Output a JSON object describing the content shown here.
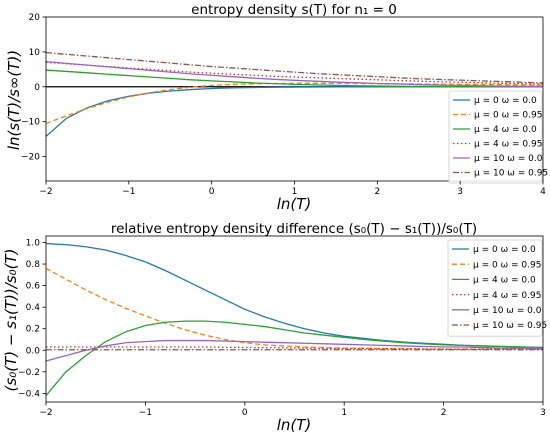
{
  "chart_data": [
    {
      "type": "line",
      "title": "entropy density s(T) for n₁ = 0",
      "xlabel": "ln(T)",
      "ylabel": "ln(s(T)/s∞(T))",
      "xlim": [
        -2,
        4
      ],
      "ylim": [
        -27,
        20
      ],
      "xticks": [
        -2,
        -1,
        0,
        1,
        2,
        3,
        4
      ],
      "yticks": [
        -20,
        -10,
        0,
        10,
        20
      ],
      "zero_line": true,
      "grid": false,
      "legend_placement": "right",
      "x": [
        -2.0,
        -1.75,
        -1.5,
        -1.25,
        -1.0,
        -0.75,
        -0.5,
        -0.25,
        0.0,
        0.25,
        0.5,
        0.75,
        1.0,
        1.25,
        1.5,
        1.75,
        2.0,
        2.25,
        2.5,
        2.75,
        3.0,
        3.25,
        3.5,
        3.75,
        4.0
      ],
      "series": [
        {
          "name": "μ = 0 ω = 0.0",
          "color": "#1f77b4",
          "dash": "solid",
          "values": [
            -14.2,
            -9.0,
            -6.0,
            -4.0,
            -2.7,
            -1.8,
            -1.2,
            -0.8,
            -0.5,
            -0.3,
            -0.2,
            -0.12,
            -0.08,
            -0.05,
            -0.03,
            -0.02,
            -0.01,
            -0.01,
            0,
            0,
            0,
            0,
            0,
            0,
            0
          ]
        },
        {
          "name": "μ = 0 ω = 0.95",
          "color": "#ff7f0e",
          "dash": "dashed",
          "values": [
            -10.5,
            -8.3,
            -6.2,
            -4.4,
            -2.9,
            -1.7,
            -0.8,
            -0.1,
            0.4,
            0.7,
            0.85,
            0.95,
            1.0,
            1.0,
            0.98,
            0.95,
            0.9,
            0.85,
            0.8,
            0.75,
            0.7,
            0.65,
            0.6,
            0.55,
            0.5
          ]
        },
        {
          "name": "μ = 4 ω = 0.0",
          "color": "#2ca02c",
          "dash": "solid",
          "values": [
            4.8,
            4.4,
            4.0,
            3.6,
            3.2,
            2.8,
            2.4,
            2.0,
            1.7,
            1.4,
            1.1,
            0.9,
            0.7,
            0.55,
            0.4,
            0.3,
            0.22,
            0.15,
            0.1,
            0.07,
            0.05,
            0.03,
            0.02,
            0.01,
            0.0
          ]
        },
        {
          "name": "μ = 4 ω = 0.95",
          "color": "#d62728",
          "dash": "dotted",
          "values": [
            7.0,
            6.6,
            6.2,
            5.8,
            5.4,
            5.0,
            4.6,
            4.2,
            3.9,
            3.6,
            3.3,
            3.0,
            2.8,
            2.6,
            2.4,
            2.2,
            2.0,
            1.8,
            1.6,
            1.45,
            1.3,
            1.15,
            1.0,
            0.9,
            0.8
          ]
        },
        {
          "name": "μ = 10 ω = 0.0",
          "color": "#9467bd",
          "dash": "solid",
          "values": [
            7.2,
            6.7,
            6.2,
            5.7,
            5.2,
            4.7,
            4.2,
            3.7,
            3.3,
            2.9,
            2.5,
            2.15,
            1.85,
            1.6,
            1.35,
            1.15,
            0.95,
            0.8,
            0.65,
            0.5,
            0.4,
            0.3,
            0.2,
            0.15,
            0.1
          ]
        },
        {
          "name": "μ = 10 ω = 0.95",
          "color": "#8c564b",
          "dash": "dashdot",
          "values": [
            9.8,
            9.3,
            8.8,
            8.3,
            7.8,
            7.3,
            6.8,
            6.3,
            5.8,
            5.4,
            5.0,
            4.6,
            4.2,
            3.8,
            3.5,
            3.2,
            2.9,
            2.6,
            2.3,
            2.1,
            1.9,
            1.7,
            1.5,
            1.3,
            1.1
          ]
        }
      ]
    },
    {
      "type": "line",
      "title": "relative entropy density difference (s₀(T) − s₁(T))/s₀(T)",
      "xlabel": "ln(T)",
      "ylabel": "(s₀(T) − s₁(T))/s₀(T)",
      "xlim": [
        -2,
        3
      ],
      "ylim": [
        -0.48,
        1.06
      ],
      "xticks": [
        -2,
        -1,
        0,
        1,
        2,
        3
      ],
      "yticks": [
        -0.4,
        -0.2,
        0.0,
        0.2,
        0.4,
        0.6,
        0.8,
        1.0
      ],
      "grid": false,
      "legend_placement": "upper right",
      "x": [
        -2.0,
        -1.8,
        -1.6,
        -1.4,
        -1.2,
        -1.0,
        -0.8,
        -0.6,
        -0.4,
        -0.2,
        0.0,
        0.2,
        0.4,
        0.6,
        0.8,
        1.0,
        1.2,
        1.4,
        1.6,
        1.8,
        2.0,
        2.2,
        2.4,
        2.6,
        2.8,
        3.0
      ],
      "series": [
        {
          "name": "μ = 0 ω = 0.0",
          "color": "#1f77b4",
          "dash": "solid",
          "values": [
            0.99,
            0.98,
            0.96,
            0.93,
            0.88,
            0.82,
            0.74,
            0.65,
            0.56,
            0.47,
            0.38,
            0.31,
            0.25,
            0.2,
            0.16,
            0.13,
            0.11,
            0.09,
            0.075,
            0.065,
            0.055,
            0.045,
            0.04,
            0.035,
            0.03,
            0.025
          ]
        },
        {
          "name": "μ = 0 ω = 0.95",
          "color": "#ff7f0e",
          "dash": "dashed",
          "values": [
            0.76,
            0.66,
            0.56,
            0.47,
            0.39,
            0.32,
            0.25,
            0.19,
            0.14,
            0.1,
            0.07,
            0.05,
            0.04,
            0.03,
            0.025,
            0.02,
            0.02,
            0.015,
            0.015,
            0.01,
            0.01,
            0.01,
            0.01,
            0.01,
            0.01,
            0.01
          ]
        },
        {
          "name": "μ = 4 ω = 0.0",
          "color": "#2ca02c",
          "dash": "solid",
          "values": [
            -0.42,
            -0.2,
            -0.05,
            0.08,
            0.17,
            0.23,
            0.26,
            0.27,
            0.27,
            0.26,
            0.24,
            0.22,
            0.19,
            0.16,
            0.14,
            0.12,
            0.1,
            0.085,
            0.07,
            0.06,
            0.05,
            0.045,
            0.04,
            0.035,
            0.03,
            0.025
          ]
        },
        {
          "name": "μ = 4 ω = 0.95",
          "color": "#d62728",
          "dash": "dotted",
          "values": [
            0.03,
            0.03,
            0.03,
            0.03,
            0.03,
            0.03,
            0.03,
            0.03,
            0.03,
            0.028,
            0.026,
            0.024,
            0.022,
            0.02,
            0.018,
            0.016,
            0.015,
            0.014,
            0.013,
            0.012,
            0.011,
            0.01,
            0.01,
            0.01,
            0.01,
            0.01
          ]
        },
        {
          "name": "μ = 10 ω = 0.0",
          "color": "#9467bd",
          "dash": "solid",
          "values": [
            -0.1,
            -0.05,
            0.0,
            0.04,
            0.07,
            0.08,
            0.09,
            0.09,
            0.09,
            0.085,
            0.08,
            0.075,
            0.07,
            0.065,
            0.06,
            0.055,
            0.05,
            0.045,
            0.04,
            0.035,
            0.03,
            0.03,
            0.025,
            0.02,
            0.02,
            0.015
          ]
        },
        {
          "name": "μ = 10 ω = 0.95",
          "color": "#8c564b",
          "dash": "dashdot",
          "values": [
            0.005,
            0.005,
            0.005,
            0.005,
            0.005,
            0.005,
            0.005,
            0.005,
            0.005,
            0.005,
            0.005,
            0.005,
            0.005,
            0.005,
            0.005,
            0.005,
            0.005,
            0.005,
            0.005,
            0.005,
            0.005,
            0.005,
            0.005,
            0.005,
            0.005,
            0.005
          ]
        }
      ]
    }
  ]
}
